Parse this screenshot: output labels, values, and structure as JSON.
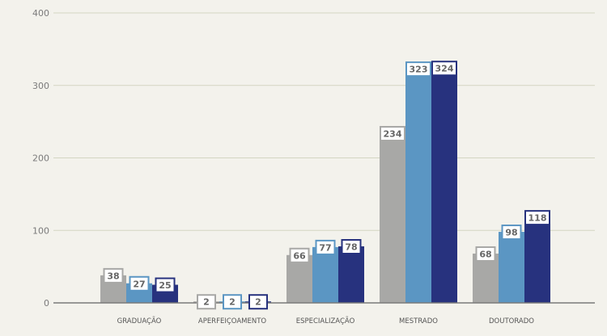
{
  "chart_data": {
    "type": "bar",
    "title": "",
    "xlabel": "",
    "ylabel": "",
    "ylim": [
      0,
      400
    ],
    "yticks": [
      0,
      100,
      200,
      300,
      400
    ],
    "grid": true,
    "legend": "none",
    "categories": [
      "GRADUAÇÃO",
      "APERFEIÇOAMENTO",
      "ESPECIALIZAÇÃO",
      "MESTRADO",
      "DOUTORADO"
    ],
    "series": [
      {
        "values": [
          38,
          2,
          66,
          234,
          68
        ],
        "color": "#a8a8a6"
      },
      {
        "values": [
          27,
          2,
          77,
          323,
          98
        ],
        "color": "#5b96c3"
      },
      {
        "values": [
          25,
          2,
          78,
          324,
          118
        ],
        "color": "#27327e"
      }
    ]
  }
}
